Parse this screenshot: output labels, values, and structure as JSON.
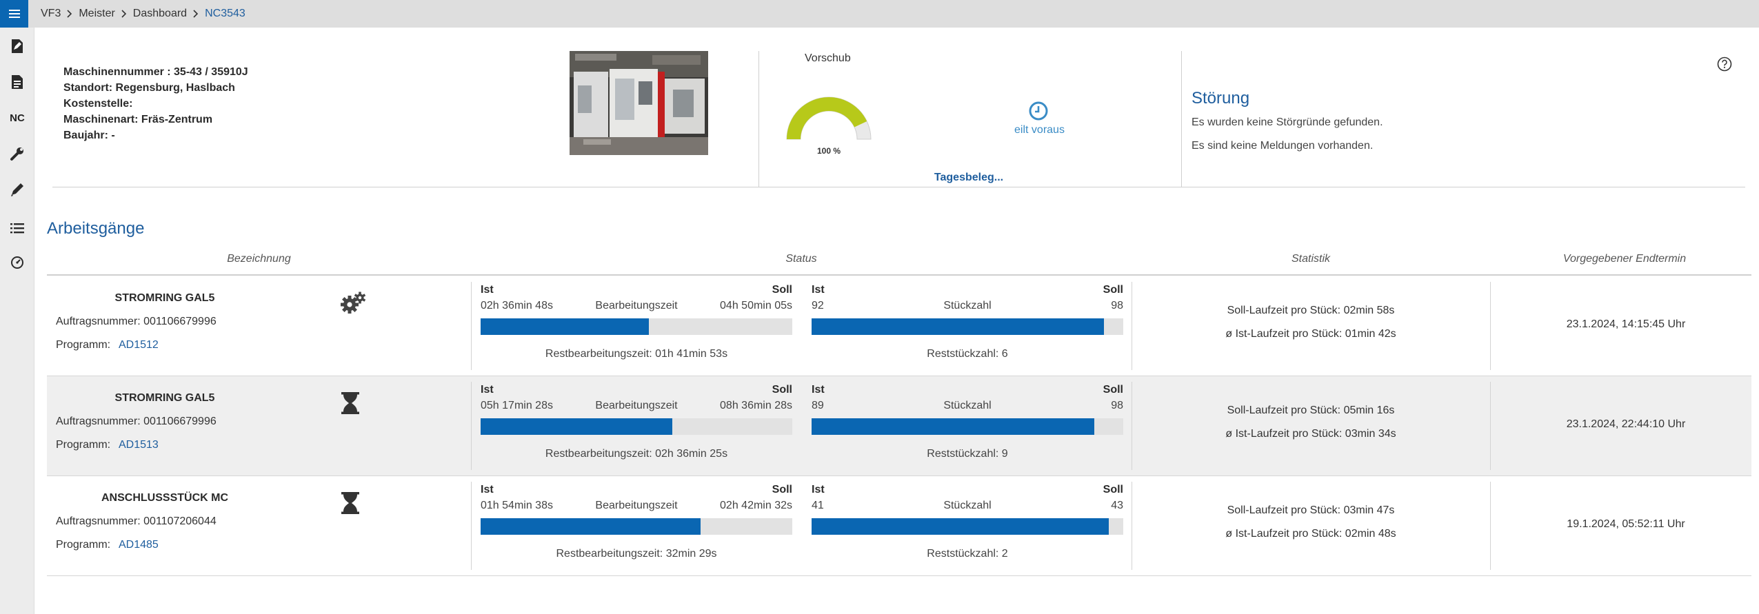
{
  "breadcrumb": [
    "VF3",
    "Meister",
    "Dashboard",
    "NC3543"
  ],
  "rail": {
    "nc_label": "NC"
  },
  "machine": {
    "nummer": "Maschinennummer : 35-43 / 35910J",
    "standort": "Standort: Regensburg, Haslbach",
    "kostenstelle": "Kostenstelle:",
    "art": "Maschinenart: Fräs-Zentrum",
    "baujahr": "Baujahr: -"
  },
  "vorschub": {
    "title": "Vorschub",
    "percent_label": "100 %",
    "percent_value": 100,
    "status": "eilt voraus",
    "tagesbeleg": "Tagesbeleg..."
  },
  "stoerung": {
    "title": "Störung",
    "line1": "Es wurden keine Störgründe gefunden.",
    "line2": "Es sind keine Meldungen vorhanden."
  },
  "colors": {
    "accent": "#1f5e9e",
    "bar": "#0a66b2",
    "gauge": "#b7c91a"
  },
  "table": {
    "title": "Arbeitsgänge",
    "headers": {
      "bezeichnung": "Bezeichnung",
      "status": "Status",
      "statistik": "Statistik",
      "endtermin": "Vorgegebener Endtermin"
    },
    "ist_label": "Ist",
    "soll_label": "Soll",
    "rows": [
      {
        "name": "STROMRING GAL5",
        "auftrag": "Auftragsnummer: 001106679996",
        "programm_label": "Programm:",
        "programm": "AD1512",
        "icon": "gears-icon",
        "bearb": {
          "ist": "02h 36min 48s",
          "label": "Bearbeitungszeit",
          "soll": "04h 50min 05s",
          "fraction": 0.54,
          "rest": "Restbearbeitungszeit: 01h 41min 53s"
        },
        "stueck": {
          "ist": "92",
          "label": "Stückzahl",
          "soll": "98",
          "fraction": 0.939,
          "rest": "Reststückzahl: 6"
        },
        "stat1": "Soll-Laufzeit pro Stück: 02min 58s",
        "stat2": "ø Ist-Laufzeit pro Stück: 01min 42s",
        "endtermin": "23.1.2024, 14:15:45 Uhr"
      },
      {
        "name": "STROMRING GAL5",
        "auftrag": "Auftragsnummer: 001106679996",
        "programm_label": "Programm:",
        "programm": "AD1513",
        "icon": "hourglass-icon",
        "bearb": {
          "ist": "05h 17min 28s",
          "label": "Bearbeitungszeit",
          "soll": "08h 36min 28s",
          "fraction": 0.615,
          "rest": "Restbearbeitungszeit: 02h 36min 25s"
        },
        "stueck": {
          "ist": "89",
          "label": "Stückzahl",
          "soll": "98",
          "fraction": 0.908,
          "rest": "Reststückzahl: 9"
        },
        "stat1": "Soll-Laufzeit pro Stück: 05min 16s",
        "stat2": "ø Ist-Laufzeit pro Stück: 03min 34s",
        "endtermin": "23.1.2024, 22:44:10 Uhr"
      },
      {
        "name": "ANSCHLUSSSTÜCK MC",
        "auftrag": "Auftragsnummer: 001107206044",
        "programm_label": "Programm:",
        "programm": "AD1485",
        "icon": "hourglass-icon",
        "bearb": {
          "ist": "01h 54min 38s",
          "label": "Bearbeitungszeit",
          "soll": "02h 42min 32s",
          "fraction": 0.705,
          "rest": "Restbearbeitungszeit: 32min 29s"
        },
        "stueck": {
          "ist": "41",
          "label": "Stückzahl",
          "soll": "43",
          "fraction": 0.953,
          "rest": "Reststückzahl: 2"
        },
        "stat1": "Soll-Laufzeit pro Stück: 03min 47s",
        "stat2": "ø Ist-Laufzeit pro Stück: 02min 48s",
        "endtermin": "19.1.2024, 05:52:11 Uhr"
      }
    ]
  }
}
